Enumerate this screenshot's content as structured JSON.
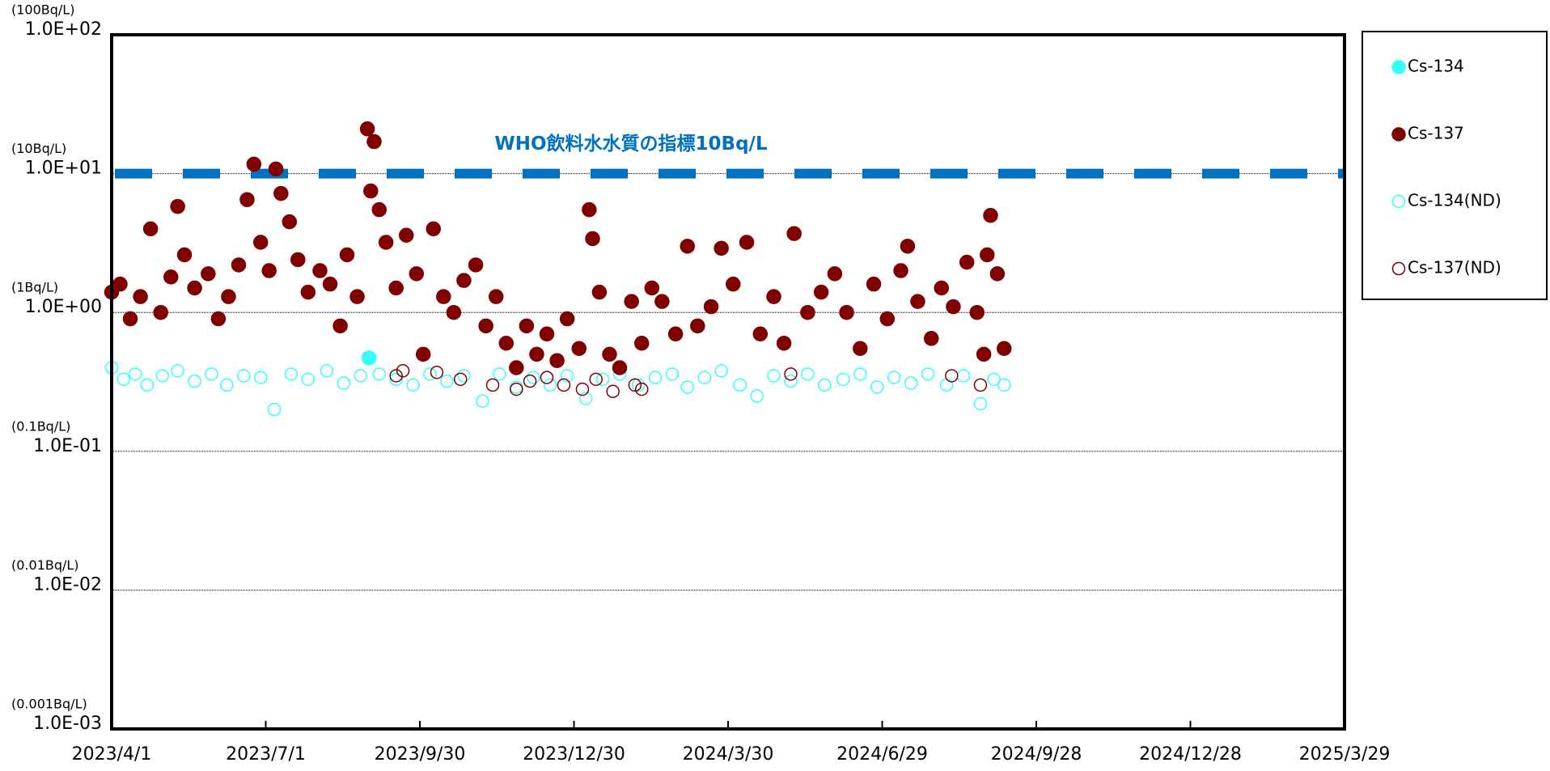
{
  "chart_data": {
    "type": "scatter",
    "ylog": true,
    "grid": true,
    "legend": "right",
    "xlim": [
      "2023/4/1",
      "2025/3/29"
    ],
    "xticks": [
      "2023/4/1",
      "2023/7/1",
      "2023/9/30",
      "2023/12/30",
      "2024/3/30",
      "2024/6/29",
      "2024/9/28",
      "2024/12/28",
      "2025/3/29"
    ],
    "ylim": [
      0.001,
      100
    ],
    "yticks": [
      {
        "value": 0.001,
        "label": "1.0E-03"
      },
      {
        "value": 0.01,
        "label": "1.0E-02"
      },
      {
        "value": 0.1,
        "label": "1.0E-01"
      },
      {
        "value": 1,
        "label": "1.0E+00"
      },
      {
        "value": 10,
        "label": "1.0E+01"
      },
      {
        "value": 100,
        "label": "1.0E+02"
      }
    ],
    "ytick_units": [
      "(0.001Bq/L)",
      "(0.01Bq/L)",
      "(0.1Bq/L)",
      "(1Bq/L)",
      "(10Bq/L)",
      "(100Bq/L)"
    ],
    "reference_lines": [
      {
        "value": 10,
        "label": "WHO飲料水水質の指標10Bq/L",
        "color": "#0070c0"
      }
    ],
    "series": [
      {
        "name": "Cs-134(ND)",
        "color": "#33ffff",
        "marker": "hollow",
        "x": [
          "2023/4/1",
          "2023/4/8",
          "2023/4/15",
          "2023/4/22",
          "2023/5/1",
          "2023/5/10",
          "2023/5/20",
          "2023/5/30",
          "2023/6/8",
          "2023/6/18",
          "2023/6/28",
          "2023/7/6",
          "2023/7/16",
          "2023/7/26",
          "2023/8/6",
          "2023/8/16",
          "2023/8/26",
          "2023/9/6",
          "2023/9/16",
          "2023/9/26",
          "2023/10/6",
          "2023/10/16",
          "2023/10/26",
          "2023/11/6",
          "2023/11/16",
          "2023/11/26",
          "2023/12/6",
          "2023/12/16",
          "2023/12/26",
          "2024/1/6",
          "2024/1/16",
          "2024/1/26",
          "2024/2/6",
          "2024/2/16",
          "2024/2/26",
          "2024/3/6",
          "2024/3/16",
          "2024/3/26",
          "2024/4/6",
          "2024/4/16",
          "2024/4/26",
          "2024/5/6",
          "2024/5/16",
          "2024/5/26",
          "2024/6/6",
          "2024/6/16",
          "2024/6/26",
          "2024/7/6",
          "2024/7/16",
          "2024/7/26",
          "2024/8/6",
          "2024/8/16",
          "2024/8/26",
          "2024/9/3",
          "2024/9/9"
        ],
        "values": [
          0.4,
          0.33,
          0.36,
          0.3,
          0.35,
          0.38,
          0.32,
          0.36,
          0.3,
          0.35,
          0.34,
          0.2,
          0.36,
          0.33,
          0.38,
          0.31,
          0.35,
          0.36,
          0.33,
          0.3,
          0.36,
          0.32,
          0.35,
          0.23,
          0.36,
          0.29,
          0.34,
          0.3,
          0.35,
          0.24,
          0.33,
          0.36,
          0.3,
          0.34,
          0.36,
          0.29,
          0.34,
          0.38,
          0.3,
          0.25,
          0.35,
          0.32,
          0.36,
          0.3,
          0.33,
          0.36,
          0.29,
          0.34,
          0.31,
          0.36,
          0.3,
          0.35,
          0.22,
          0.33,
          0.3
        ]
      },
      {
        "name": "Cs-137(ND)",
        "color": "#800000",
        "marker": "hollow",
        "x": [
          "2023/9/16",
          "2023/9/20",
          "2023/10/10",
          "2023/10/24",
          "2023/11/12",
          "2023/11/26",
          "2023/12/4",
          "2023/12/14",
          "2023/12/24",
          "2024/1/4",
          "2024/1/12",
          "2024/1/22",
          "2024/2/4",
          "2024/2/8",
          "2024/5/6",
          "2024/8/9",
          "2024/8/26"
        ],
        "values": [
          0.35,
          0.38,
          0.37,
          0.33,
          0.3,
          0.28,
          0.32,
          0.34,
          0.3,
          0.28,
          0.33,
          0.27,
          0.3,
          0.28,
          0.36,
          0.35,
          0.3
        ]
      },
      {
        "name": "Cs-137",
        "color": "#800000",
        "marker": "filled",
        "x": [
          "2023/4/1",
          "2023/4/6",
          "2023/4/12",
          "2023/4/18",
          "2023/4/24",
          "2023/4/30",
          "2023/5/6",
          "2023/5/10",
          "2023/5/14",
          "2023/5/20",
          "2023/5/28",
          "2023/6/3",
          "2023/6/9",
          "2023/6/15",
          "2023/6/20",
          "2023/6/24",
          "2023/6/28",
          "2023/7/3",
          "2023/7/7",
          "2023/7/10",
          "2023/7/15",
          "2023/7/20",
          "2023/7/26",
          "2023/8/2",
          "2023/8/8",
          "2023/8/14",
          "2023/8/18",
          "2023/8/24",
          "2023/8/30",
          "2023/9/1",
          "2023/9/3",
          "2023/9/6",
          "2023/9/10",
          "2023/9/16",
          "2023/9/22",
          "2023/9/28",
          "2023/10/2",
          "2023/10/8",
          "2023/10/14",
          "2023/10/20",
          "2023/10/26",
          "2023/11/2",
          "2023/11/8",
          "2023/11/14",
          "2023/11/20",
          "2023/11/26",
          "2023/12/2",
          "2023/12/8",
          "2023/12/14",
          "2023/12/20",
          "2023/12/26",
          "2024/1/2",
          "2024/1/8",
          "2024/1/10",
          "2024/1/14",
          "2024/1/20",
          "2024/1/26",
          "2024/2/2",
          "2024/2/8",
          "2024/2/14",
          "2024/2/20",
          "2024/2/28",
          "2024/3/6",
          "2024/3/12",
          "2024/3/20",
          "2024/3/26",
          "2024/4/2",
          "2024/4/10",
          "2024/4/18",
          "2024/4/26",
          "2024/5/2",
          "2024/5/8",
          "2024/5/16",
          "2024/5/24",
          "2024/6/1",
          "2024/6/8",
          "2024/6/16",
          "2024/6/24",
          "2024/7/2",
          "2024/7/10",
          "2024/7/14",
          "2024/7/20",
          "2024/7/28",
          "2024/8/3",
          "2024/8/10",
          "2024/8/18",
          "2024/8/24",
          "2024/8/28",
          "2024/8/30",
          "2024/9/1",
          "2024/9/5",
          "2024/9/9"
        ],
        "values": [
          1.4,
          1.6,
          0.9,
          1.3,
          4.0,
          1.0,
          1.8,
          5.8,
          2.6,
          1.5,
          1.9,
          0.9,
          1.3,
          2.2,
          6.5,
          11.7,
          3.2,
          2.0,
          10.8,
          7.2,
          4.5,
          2.4,
          1.4,
          2.0,
          1.6,
          0.8,
          2.6,
          1.3,
          21,
          7.5,
          17,
          5.5,
          3.2,
          1.5,
          3.6,
          1.9,
          0.5,
          4.0,
          1.3,
          1.0,
          1.7,
          2.2,
          0.8,
          1.3,
          0.6,
          0.4,
          0.8,
          0.5,
          0.7,
          0.45,
          0.9,
          0.55,
          5.5,
          3.4,
          1.4,
          0.5,
          0.4,
          1.2,
          0.6,
          1.5,
          1.2,
          0.7,
          3.0,
          0.8,
          1.1,
          2.9,
          1.6,
          3.2,
          0.7,
          1.3,
          0.6,
          3.7,
          1.0,
          1.4,
          1.9,
          1.0,
          0.55,
          1.6,
          0.9,
          2.0,
          3.0,
          1.2,
          0.65,
          1.5,
          1.1,
          2.3,
          1.0,
          0.5,
          2.6,
          5.0,
          1.9,
          0.55
        ]
      },
      {
        "name": "Cs-134",
        "color": "#33ffff",
        "marker": "filled",
        "x": [
          "2023/8/31"
        ],
        "values": [
          0.47
        ]
      }
    ],
    "legend_order": [
      3,
      2,
      0,
      1
    ]
  }
}
